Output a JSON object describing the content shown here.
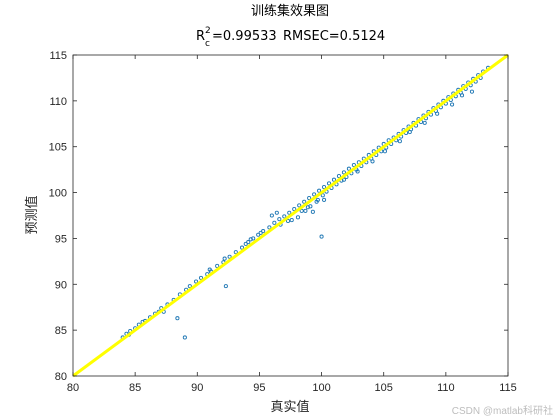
{
  "colors": {
    "points": "#1f77b4",
    "fit_line": "#ffff00",
    "axes": "#262626",
    "background": "#ffffff"
  },
  "watermark": "CSDN @matlab科研社",
  "chart_data": {
    "type": "scatter",
    "title": "训练集效果图",
    "subtitle": {
      "r2_symbol": "R",
      "r2_superscript": "2",
      "r2_subscript": "c",
      "r2_value": "=0.99533",
      "rmse": "RMSEC=0.5124"
    },
    "xlabel": "真实值",
    "ylabel": "预测值",
    "xlim": [
      80,
      115
    ],
    "ylim": [
      80,
      115
    ],
    "xticks": [
      80,
      85,
      90,
      95,
      100,
      105,
      110,
      115
    ],
    "yticks": [
      80,
      85,
      90,
      95,
      100,
      105,
      110,
      115
    ],
    "grid": false,
    "ideal_line": {
      "x": [
        80,
        115
      ],
      "y": [
        80,
        115
      ]
    },
    "series": [
      {
        "x": [
          84.0,
          84.3,
          84.6,
          85.0,
          85.3,
          85.8,
          86.2,
          86.6,
          87.1,
          87.6,
          88.1,
          88.6,
          88.4,
          89.1,
          89.4,
          89.9,
          90.3,
          90.8,
          91.1,
          91.6,
          92.1,
          92.3,
          92.6,
          93.1,
          93.6,
          94.1,
          94.5,
          94.9,
          95.3,
          95.8,
          96.2,
          96.6,
          97.0,
          97.4,
          97.8,
          98.2,
          98.6,
          99.0,
          99.4,
          99.8,
          100.2,
          100.6,
          101.0,
          101.4,
          101.8,
          102.2,
          102.6,
          103.0,
          103.4,
          103.8,
          104.2,
          104.6,
          105.0,
          105.4,
          105.8,
          106.2,
          106.6,
          107.0,
          107.4,
          107.8,
          108.2,
          108.6,
          109.0,
          109.4,
          109.8,
          110.2,
          110.6,
          111.0,
          111.4,
          111.8,
          112.2,
          112.6,
          113.0,
          113.4,
          84.5,
          85.6,
          86.9,
          87.3,
          89.0,
          91.0,
          92.2,
          93.9,
          94.3,
          95.1,
          96.7,
          97.3,
          98.1,
          98.4,
          98.9,
          99.3,
          99.7,
          100.1,
          100.4,
          100.8,
          101.2,
          101.6,
          102.0,
          102.4,
          102.8,
          103.2,
          103.6,
          104.0,
          104.4,
          104.8,
          105.2,
          105.6,
          106.0,
          106.4,
          106.8,
          107.2,
          107.6,
          108.0,
          108.4,
          108.8,
          109.2,
          109.6,
          110.0,
          110.4,
          110.8,
          111.2,
          111.6,
          112.0,
          112.4,
          112.8,
          96.0,
          96.4,
          97.6,
          98.7,
          99.1,
          99.6,
          100.0,
          100.2,
          101.8,
          102.9,
          104.1,
          105.1,
          106.3,
          107.1,
          108.3,
          109.3,
          110.5,
          111.3,
          112.1
        ],
        "y": [
          84.2,
          84.6,
          84.9,
          85.2,
          85.6,
          86.0,
          86.4,
          86.8,
          87.4,
          87.8,
          88.3,
          88.9,
          86.3,
          89.4,
          89.8,
          90.3,
          90.7,
          91.1,
          91.4,
          92.0,
          92.4,
          89.8,
          93.0,
          93.5,
          94.0,
          94.6,
          95.0,
          95.4,
          95.8,
          96.2,
          96.7,
          97.1,
          97.4,
          97.8,
          98.2,
          98.6,
          99.0,
          99.4,
          99.8,
          100.2,
          100.6,
          101.0,
          101.4,
          101.8,
          102.2,
          102.6,
          103.0,
          103.3,
          103.7,
          104.1,
          104.5,
          104.9,
          105.3,
          105.7,
          106.0,
          106.4,
          106.8,
          107.2,
          107.6,
          108.0,
          108.4,
          108.8,
          109.2,
          109.6,
          110.0,
          110.4,
          110.8,
          111.2,
          111.6,
          112.0,
          112.4,
          112.8,
          113.2,
          113.6,
          84.5,
          85.9,
          87.0,
          87.0,
          84.2,
          91.6,
          92.8,
          94.4,
          94.9,
          95.6,
          96.5,
          96.9,
          97.3,
          98.0,
          98.4,
          97.9,
          99.2,
          99.7,
          100.1,
          100.5,
          100.9,
          101.3,
          101.7,
          102.1,
          102.5,
          102.9,
          103.3,
          103.7,
          104.1,
          104.5,
          104.9,
          105.3,
          105.7,
          106.1,
          106.5,
          106.9,
          107.3,
          107.7,
          108.1,
          108.5,
          108.9,
          109.3,
          109.7,
          110.1,
          110.5,
          110.9,
          111.3,
          111.7,
          112.1,
          112.5,
          97.5,
          97.8,
          97.0,
          98.0,
          98.5,
          99.0,
          95.2,
          99.2,
          101.4,
          102.3,
          103.4,
          104.5,
          105.6,
          106.6,
          107.6,
          108.6,
          109.6,
          110.6,
          111.0
        ]
      }
    ]
  }
}
